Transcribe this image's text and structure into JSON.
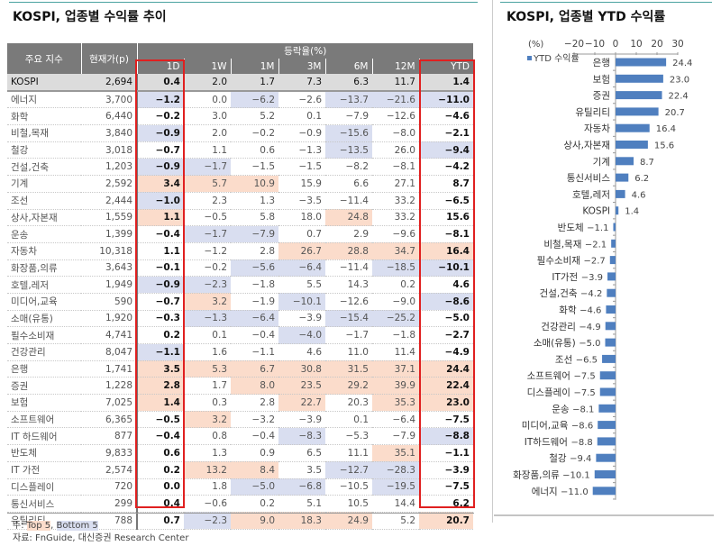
{
  "left": {
    "title": "KOSPI, 업종별 수익률 추이",
    "table": {
      "header_name": "주요 지수",
      "header_price": "현재가(p)",
      "header_group": "등락율(%)",
      "periods": [
        "1D",
        "1W",
        "1M",
        "3M",
        "6M",
        "12M",
        "YTD"
      ],
      "rows": [
        {
          "name": "KOSPI",
          "price": "2,694",
          "values": [
            "0.4",
            "2.0",
            "1.7",
            "7.3",
            "6.3",
            "11.7",
            "1.4"
          ],
          "marks": [
            "",
            "",
            "",
            "",
            "",
            "",
            ""
          ]
        },
        {
          "name": "에너지",
          "price": "3,700",
          "values": [
            "−1.2",
            "0.0",
            "−6.2",
            "−2.6",
            "−13.7",
            "−21.6",
            "−11.0"
          ],
          "marks": [
            "b",
            "",
            "b",
            "",
            "b",
            "b",
            "b"
          ]
        },
        {
          "name": "화학",
          "price": "6,440",
          "values": [
            "−0.2",
            "3.0",
            "5.2",
            "0.1",
            "−7.9",
            "−12.6",
            "−4.6"
          ],
          "marks": [
            "",
            "",
            "",
            "",
            "",
            "",
            ""
          ]
        },
        {
          "name": "비철,목재",
          "price": "3,840",
          "values": [
            "−0.9",
            "2.0",
            "−0.2",
            "−0.9",
            "−15.6",
            "−8.0",
            "−2.1"
          ],
          "marks": [
            "b",
            "",
            "",
            "",
            "b",
            "",
            ""
          ]
        },
        {
          "name": "철강",
          "price": "3,018",
          "values": [
            "−0.7",
            "1.1",
            "0.6",
            "−1.3",
            "−13.5",
            "26.0",
            "−9.4"
          ],
          "marks": [
            "",
            "",
            "",
            "",
            "b",
            "",
            "b"
          ]
        },
        {
          "name": "건설,건축",
          "price": "1,203",
          "values": [
            "−0.9",
            "−1.7",
            "−1.5",
            "−1.5",
            "−8.2",
            "−8.1",
            "−4.2"
          ],
          "marks": [
            "b",
            "b",
            "",
            "",
            "",
            "",
            ""
          ]
        },
        {
          "name": "기계",
          "price": "2,592",
          "values": [
            "3.4",
            "5.7",
            "10.9",
            "15.9",
            "6.6",
            "27.1",
            "8.7"
          ],
          "marks": [
            "t",
            "t",
            "t",
            "",
            "",
            "",
            ""
          ]
        },
        {
          "name": "조선",
          "price": "2,444",
          "values": [
            "−1.0",
            "2.3",
            "1.3",
            "−3.5",
            "−11.4",
            "33.2",
            "−6.5"
          ],
          "marks": [
            "b",
            "",
            "",
            "",
            "",
            "",
            ""
          ]
        },
        {
          "name": "상사,자본재",
          "price": "1,559",
          "values": [
            "1.1",
            "−0.5",
            "5.8",
            "18.0",
            "24.8",
            "33.2",
            "15.6"
          ],
          "marks": [
            "t",
            "",
            "",
            "",
            "t",
            "",
            ""
          ]
        },
        {
          "name": "운송",
          "price": "1,399",
          "values": [
            "−0.4",
            "−1.7",
            "−7.9",
            "0.7",
            "2.9",
            "−9.6",
            "−8.1"
          ],
          "marks": [
            "",
            "b",
            "b",
            "",
            "",
            "",
            ""
          ]
        },
        {
          "name": "자동차",
          "price": "10,318",
          "values": [
            "1.1",
            "−1.2",
            "2.8",
            "26.7",
            "28.8",
            "34.7",
            "16.4"
          ],
          "marks": [
            "",
            "",
            "",
            "t",
            "t",
            "t",
            "t"
          ]
        },
        {
          "name": "화장품,의류",
          "price": "3,643",
          "values": [
            "−0.1",
            "−0.2",
            "−5.6",
            "−6.4",
            "−11.4",
            "−18.5",
            "−10.1"
          ],
          "marks": [
            "",
            "",
            "b",
            "b",
            "",
            "b",
            "b"
          ]
        },
        {
          "name": "호텔,레저",
          "price": "1,949",
          "values": [
            "−0.9",
            "−2.3",
            "−1.8",
            "5.5",
            "14.3",
            "0.2",
            "4.6"
          ],
          "marks": [
            "b",
            "b",
            "",
            "",
            "",
            "",
            ""
          ]
        },
        {
          "name": "미디어,교육",
          "price": "590",
          "values": [
            "−0.7",
            "3.2",
            "−1.9",
            "−10.1",
            "−12.6",
            "−9.0",
            "−8.6"
          ],
          "marks": [
            "",
            "t",
            "",
            "b",
            "",
            "",
            "b"
          ]
        },
        {
          "name": "소매(유통)",
          "price": "1,920",
          "values": [
            "−0.3",
            "−1.3",
            "−6.4",
            "−3.9",
            "−15.4",
            "−25.2",
            "−5.0"
          ],
          "marks": [
            "",
            "b",
            "b",
            "",
            "b",
            "b",
            ""
          ]
        },
        {
          "name": "필수소비재",
          "price": "4,741",
          "values": [
            "0.2",
            "0.1",
            "−0.4",
            "−4.0",
            "−1.7",
            "−1.8",
            "−2.7"
          ],
          "marks": [
            "",
            "",
            "",
            "b",
            "",
            "",
            ""
          ]
        },
        {
          "name": "건강관리",
          "price": "8,047",
          "values": [
            "−1.1",
            "1.6",
            "−1.1",
            "4.6",
            "11.0",
            "11.4",
            "−4.9"
          ],
          "marks": [
            "b",
            "",
            "",
            "",
            "",
            "",
            ""
          ]
        },
        {
          "name": "은행",
          "price": "1,741",
          "values": [
            "3.5",
            "5.3",
            "6.7",
            "30.8",
            "31.5",
            "37.1",
            "24.4"
          ],
          "marks": [
            "t",
            "t",
            "t",
            "t",
            "t",
            "t",
            "t"
          ]
        },
        {
          "name": "증권",
          "price": "1,228",
          "values": [
            "2.8",
            "1.7",
            "8.0",
            "23.5",
            "29.2",
            "39.9",
            "22.4"
          ],
          "marks": [
            "t",
            "",
            "t",
            "t",
            "t",
            "t",
            "t"
          ]
        },
        {
          "name": "보험",
          "price": "7,025",
          "values": [
            "1.4",
            "0.3",
            "2.8",
            "22.7",
            "20.3",
            "35.3",
            "23.0"
          ],
          "marks": [
            "t",
            "",
            "",
            "t",
            "",
            "t",
            "t"
          ]
        },
        {
          "name": "소프트웨어",
          "price": "6,365",
          "values": [
            "−0.5",
            "3.2",
            "−3.2",
            "−3.9",
            "0.1",
            "−6.4",
            "−7.5"
          ],
          "marks": [
            "",
            "t",
            "",
            "",
            "",
            "",
            ""
          ]
        },
        {
          "name": "IT 하드웨어",
          "price": "877",
          "values": [
            "−0.4",
            "0.8",
            "−0.4",
            "−8.3",
            "−5.3",
            "−7.9",
            "−8.8"
          ],
          "marks": [
            "",
            "",
            "",
            "b",
            "",
            "",
            "b"
          ]
        },
        {
          "name": "반도체",
          "price": "9,833",
          "values": [
            "0.6",
            "1.3",
            "0.9",
            "6.5",
            "11.1",
            "35.1",
            "−1.1"
          ],
          "marks": [
            "",
            "",
            "",
            "",
            "",
            "t",
            ""
          ]
        },
        {
          "name": "IT 가전",
          "price": "2,574",
          "values": [
            "0.2",
            "13.2",
            "8.4",
            "3.5",
            "−12.7",
            "−28.3",
            "−3.9"
          ],
          "marks": [
            "",
            "t",
            "t",
            "",
            "b",
            "b",
            ""
          ]
        },
        {
          "name": "디스플레이",
          "price": "720",
          "values": [
            "0.0",
            "1.8",
            "−5.0",
            "−6.8",
            "−10.5",
            "−19.5",
            "−7.5"
          ],
          "marks": [
            "",
            "",
            "b",
            "b",
            "",
            "b",
            ""
          ]
        },
        {
          "name": "통신서비스",
          "price": "299",
          "values": [
            "0.4",
            "−0.6",
            "0.2",
            "5.1",
            "10.5",
            "14.4",
            "6.2"
          ],
          "marks": [
            "",
            "",
            "",
            "",
            "",
            "",
            ""
          ]
        },
        {
          "name": "유틸리티",
          "price": "788",
          "values": [
            "0.7",
            "−2.3",
            "9.0",
            "18.3",
            "24.9",
            "5.2",
            "20.7"
          ],
          "marks": [
            "",
            "b",
            "t",
            "t",
            "t",
            "",
            "t"
          ]
        }
      ]
    },
    "note_prefix": "주: ",
    "note_top": "Top 5",
    "note_sep": ", ",
    "note_bottom": "Bottom 5",
    "source": "자료: FnGuide, 대신증권 Research Center"
  },
  "colors": {
    "top5": "#fbdccb",
    "bottom5": "#d9def0",
    "highlight_box": "#e02020",
    "bar": "#4f7fbf",
    "header": "#7a7a7a"
  },
  "chart_data": {
    "type": "bar",
    "orientation": "horizontal",
    "title": "KOSPI, 업종별 YTD 수익률",
    "unit_label": "(%)",
    "legend": "YTD 수익률",
    "legend_position": "top-left",
    "xlim": [
      -20,
      30
    ],
    "xticks": [
      "−20",
      "−10",
      "0",
      "10",
      "20",
      "30"
    ],
    "grid": false,
    "categories": [
      "은행",
      "보험",
      "증권",
      "유틸리티",
      "자동차",
      "상사,자본재",
      "기계",
      "통신서비스",
      "호텔,레저",
      "KOSPI",
      "반도체",
      "비철,목재",
      "필수소비재",
      "IT가전",
      "건설,건축",
      "화학",
      "건강관리",
      "소매(유통)",
      "조선",
      "소프트웨어",
      "디스플레이",
      "운송",
      "미디어,교육",
      "IT하드웨어",
      "철강",
      "화장품,의류",
      "에너지"
    ],
    "values": [
      24.4,
      23.0,
      22.4,
      20.7,
      16.4,
      15.6,
      8.7,
      6.2,
      4.6,
      1.4,
      -1.1,
      -2.1,
      -2.7,
      -3.9,
      -4.2,
      -4.6,
      -4.9,
      -5.0,
      -6.5,
      -7.5,
      -7.5,
      -8.1,
      -8.6,
      -8.8,
      -9.4,
      -10.1,
      -11.0
    ],
    "labels": [
      "24.4",
      "23.0",
      "22.4",
      "20.7",
      "16.4",
      "15.6",
      "8.7",
      "6.2",
      "4.6",
      "1.4",
      "−1.1",
      "−2.1",
      "−2.7",
      "−3.9",
      "−4.2",
      "−4.6",
      "−4.9",
      "−5.0",
      "−6.5",
      "−7.5",
      "−7.5",
      "−8.1",
      "−8.6",
      "−8.8",
      "−9.4",
      "−10.1",
      "−11.0"
    ]
  }
}
